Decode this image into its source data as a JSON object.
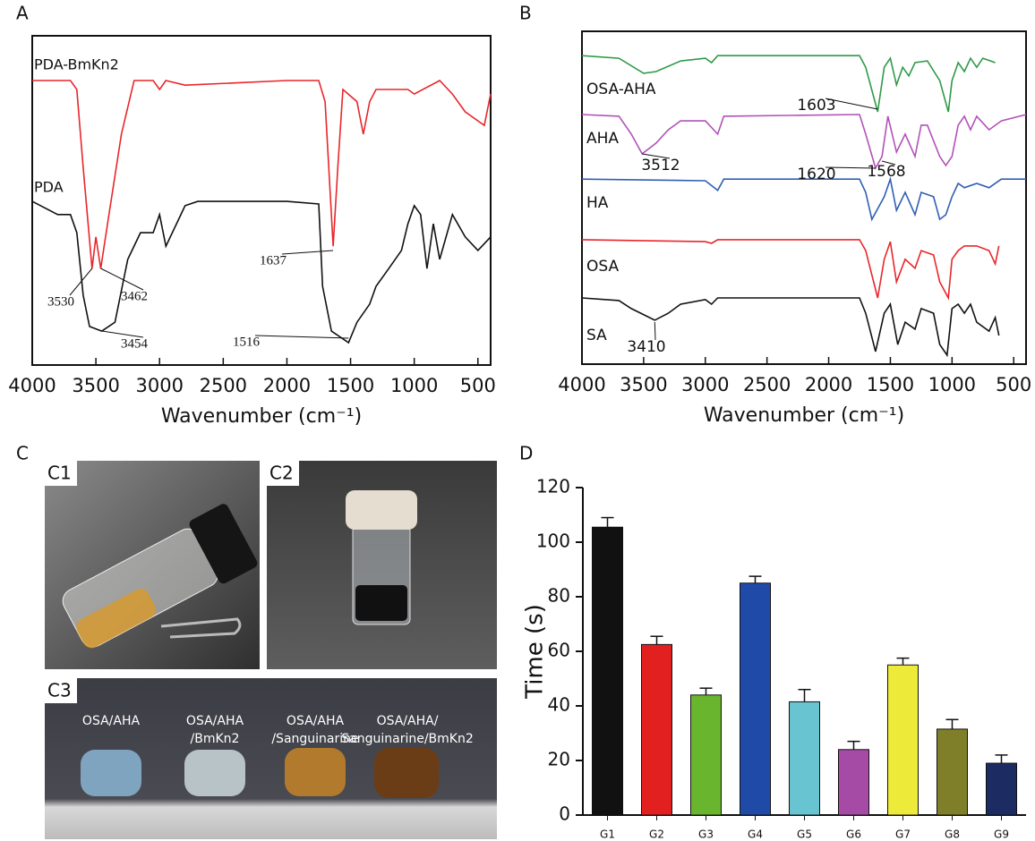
{
  "panels": [
    "A",
    "B",
    "C",
    "D"
  ],
  "photos": {
    "labels": [
      "C1",
      "C2",
      "C3"
    ],
    "captions": [
      [
        "OSA/AHA"
      ],
      [
        "OSA/AHA",
        "/BmKn2"
      ],
      [
        "OSA/AHA",
        "/Sanguinarine"
      ],
      [
        "OSA/AHA/",
        "Sanguinarine/BmKn2"
      ]
    ]
  },
  "chart_data": [
    {
      "type": "line",
      "xlabel": "Wavenumber (cm⁻¹)",
      "xlim": [
        4000,
        400
      ],
      "ylim": [
        0,
        100
      ],
      "xticks": [
        4000,
        3500,
        3000,
        2500,
        2000,
        1500,
        1000,
        500
      ],
      "series": [
        {
          "name": "PDA-BmKn2",
          "color": "#e8262b",
          "x": [
            4000,
            3750,
            3700,
            3650,
            3600,
            3530,
            3500,
            3462,
            3400,
            3300,
            3200,
            3050,
            3000,
            2950,
            2800,
            2000,
            1750,
            1700,
            1637,
            1600,
            1560,
            1450,
            1400,
            1350,
            1300,
            1200,
            1050,
            1000,
            800,
            700,
            600,
            450,
            400
          ],
          "values": [
            86.4,
            86.4,
            86.4,
            83.7,
            60.0,
            29.3,
            38.9,
            29.3,
            45.0,
            70.1,
            86.4,
            86.4,
            83.7,
            86.4,
            85.0,
            86.4,
            86.4,
            80.0,
            36.1,
            60.0,
            83.7,
            80.0,
            70.1,
            80.0,
            83.7,
            83.7,
            83.7,
            82.3,
            86.4,
            82.3,
            76.9,
            72.8,
            82.3
          ]
        },
        {
          "name": "PDA",
          "color": "#111111",
          "x": [
            4000,
            3800,
            3700,
            3650,
            3600,
            3550,
            3454,
            3350,
            3250,
            3150,
            3050,
            3000,
            2950,
            2850,
            2800,
            2700,
            2000,
            1750,
            1720,
            1650,
            1516,
            1450,
            1350,
            1300,
            1200,
            1100,
            1050,
            1000,
            950,
            900,
            850,
            800,
            700,
            600,
            500,
            400
          ],
          "values": [
            49.7,
            45.7,
            45.7,
            40.2,
            21.2,
            11.7,
            10.3,
            13.0,
            32.1,
            40.2,
            40.2,
            45.7,
            36.1,
            44.3,
            48.4,
            49.7,
            49.7,
            48.9,
            23.9,
            10.3,
            6.8,
            13.0,
            18.5,
            23.9,
            29.3,
            34.8,
            42.9,
            48.4,
            45.7,
            29.3,
            42.9,
            32.1,
            45.7,
            38.9,
            34.8,
            38.9
          ]
        }
      ],
      "annotations": [
        3530,
        3462,
        3454,
        1637,
        1516
      ]
    },
    {
      "type": "line",
      "xlabel": "Wavenumber (cm⁻¹)",
      "xlim": [
        4000,
        400
      ],
      "ylim": [
        0,
        100
      ],
      "xticks": [
        4000,
        3500,
        3000,
        2500,
        2000,
        1500,
        1000,
        500
      ],
      "series": [
        {
          "name": "OSA-AHA",
          "color": "#2e9a48",
          "x": [
            4000,
            3700,
            3500,
            3400,
            3200,
            3000,
            2950,
            2900,
            1750,
            1700,
            1603,
            1550,
            1500,
            1450,
            1400,
            1350,
            1300,
            1200,
            1100,
            1030,
            1000,
            950,
            900,
            850,
            800,
            750,
            650
          ],
          "values": [
            92.7,
            91.9,
            87.4,
            87.9,
            91.1,
            91.9,
            90.6,
            92.7,
            92.7,
            89.2,
            75.8,
            89.2,
            91.9,
            83.9,
            89.2,
            86.6,
            90.6,
            91.1,
            85.2,
            75.8,
            85.2,
            90.6,
            87.9,
            91.9,
            89.2,
            91.9,
            90.6
          ]
        },
        {
          "name": "AHA",
          "color": "#b152b8",
          "x": [
            4000,
            3700,
            3600,
            3512,
            3400,
            3300,
            3200,
            3000,
            2900,
            2850,
            1750,
            1700,
            1620,
            1568,
            1520,
            1450,
            1380,
            1300,
            1250,
            1200,
            1100,
            1050,
            1000,
            950,
            900,
            850,
            800,
            700,
            600,
            400
          ],
          "values": [
            75.0,
            74.5,
            69.1,
            63.2,
            66.4,
            70.4,
            73.1,
            73.1,
            69.1,
            74.5,
            75.0,
            69.1,
            58.9,
            62.4,
            74.5,
            63.7,
            69.1,
            62.4,
            71.8,
            71.8,
            62.4,
            59.7,
            62.4,
            71.8,
            74.5,
            70.4,
            74.5,
            70.4,
            73.1,
            75.0
          ]
        },
        {
          "name": "HA",
          "color": "#2f5fb3",
          "x": [
            4000,
            3000,
            2900,
            2850,
            1750,
            1700,
            1650,
            1550,
            1500,
            1450,
            1380,
            1300,
            1250,
            1150,
            1100,
            1050,
            1000,
            950,
            900,
            800,
            700,
            600,
            400
          ],
          "values": [
            55.6,
            55.1,
            52.2,
            55.6,
            55.6,
            51.6,
            43.5,
            50.3,
            55.6,
            46.2,
            51.6,
            44.9,
            51.6,
            50.3,
            43.5,
            44.9,
            50.3,
            54.3,
            53.0,
            54.3,
            53.0,
            55.6,
            55.6
          ]
        },
        {
          "name": "OSA",
          "color": "#e8262b",
          "x": [
            4000,
            3000,
            2950,
            2900,
            1750,
            1700,
            1603,
            1550,
            1500,
            1450,
            1380,
            1300,
            1250,
            1150,
            1100,
            1030,
            1000,
            950,
            900,
            800,
            700,
            650,
            620
          ],
          "values": [
            37.4,
            36.8,
            36.3,
            37.4,
            37.4,
            34.1,
            19.9,
            31.5,
            36.8,
            24.7,
            31.5,
            28.8,
            34.1,
            32.8,
            24.7,
            19.9,
            31.5,
            34.1,
            35.5,
            35.5,
            34.1,
            30.1,
            35.5
          ]
        },
        {
          "name": "SA",
          "color": "#111111",
          "x": [
            4000,
            3700,
            3600,
            3410,
            3300,
            3200,
            3000,
            2950,
            2900,
            1750,
            1700,
            1620,
            1550,
            1500,
            1440,
            1380,
            1300,
            1250,
            1150,
            1100,
            1040,
            1000,
            950,
            900,
            850,
            800,
            700,
            650,
            620
          ],
          "values": [
            19.9,
            19.1,
            16.7,
            13.2,
            15.3,
            18.0,
            19.4,
            18.0,
            19.9,
            19.9,
            15.3,
            3.8,
            15.3,
            18.0,
            5.9,
            12.6,
            10.5,
            16.7,
            15.3,
            5.9,
            2.7,
            16.7,
            18.0,
            15.3,
            18.0,
            12.6,
            9.9,
            14.0,
            8.6
          ]
        }
      ],
      "annotations": [
        1603,
        3512,
        1620,
        1568,
        3410
      ]
    },
    {
      "type": "bar",
      "ylabel": "Time (s)",
      "ylim": [
        0,
        120
      ],
      "yticks": [
        0,
        20,
        40,
        60,
        80,
        100,
        120
      ],
      "categories": [
        "G1",
        "G2",
        "G3",
        "G4",
        "G5",
        "G6",
        "G7",
        "G8",
        "G9"
      ],
      "values": [
        105.5,
        62.5,
        44,
        85,
        41.5,
        24,
        55,
        31.5,
        19
      ],
      "errors": [
        3.5,
        3,
        2.5,
        2.5,
        4.5,
        3,
        2.5,
        3.5,
        3
      ],
      "colors": [
        "#111111",
        "#e32020",
        "#6ab52e",
        "#1f4aa8",
        "#67c4d0",
        "#a54ba5",
        "#eeea3a",
        "#7f7f2a",
        "#1c2c63"
      ]
    }
  ]
}
